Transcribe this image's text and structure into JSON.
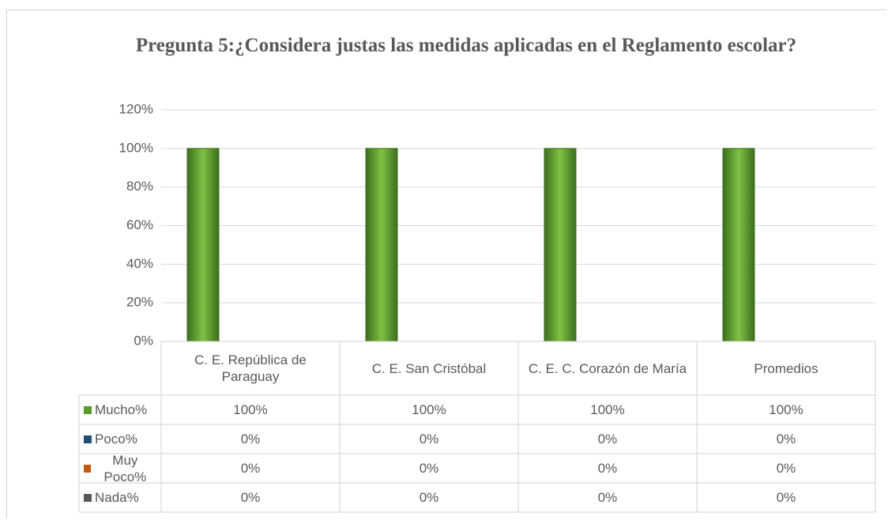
{
  "chart_data": {
    "type": "bar",
    "title": "Pregunta 5:¿Considera justas las medidas aplicadas en el Reglamento escolar?",
    "categories": [
      "C. E. República de Paraguay",
      "C. E. San Cristóbal",
      "C. E. C. Corazón de María",
      "Promedios"
    ],
    "series": [
      {
        "name": "Mucho%",
        "color": "#5a9a2e",
        "values": [
          100,
          100,
          100,
          100
        ],
        "value_labels": [
          "100%",
          "100%",
          "100%",
          "100%"
        ]
      },
      {
        "name": "Poco%",
        "color": "#1f4e79",
        "values": [
          0,
          0,
          0,
          0
        ],
        "value_labels": [
          "0%",
          "0%",
          "0%",
          "0%"
        ]
      },
      {
        "name": "Muy Poco%",
        "color": "#c55a11",
        "values": [
          0,
          0,
          0,
          0
        ],
        "value_labels": [
          "0%",
          "0%",
          "0%",
          "0%"
        ]
      },
      {
        "name": "Nada%",
        "color": "#595959",
        "values": [
          0,
          0,
          0,
          0
        ],
        "value_labels": [
          "0%",
          "0%",
          "0%",
          "0%"
        ]
      }
    ],
    "ylim": [
      0,
      120
    ],
    "yticks": [
      {
        "value": 0,
        "label": "0%"
      },
      {
        "value": 20,
        "label": "20%"
      },
      {
        "value": 40,
        "label": "40%"
      },
      {
        "value": 60,
        "label": "60%"
      },
      {
        "value": 80,
        "label": "80%"
      },
      {
        "value": 100,
        "label": "100%"
      },
      {
        "value": 120,
        "label": "120%"
      }
    ],
    "grid": true,
    "data_table": true
  }
}
